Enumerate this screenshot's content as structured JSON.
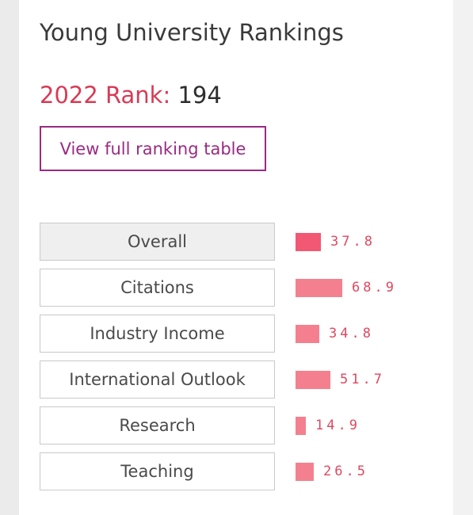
{
  "header": {
    "title": "Young University Rankings"
  },
  "rank": {
    "label": "2022 Rank:",
    "value": "194"
  },
  "actions": {
    "full_table_label": "View full ranking table"
  },
  "colors": {
    "rank_label": "#d93a55",
    "button_border": "#9b2a82",
    "bar": "#f4808f",
    "bar_active": "#f25873",
    "score_text": "#e04860"
  },
  "metrics": [
    {
      "name": "Overall",
      "score": "37.8",
      "value": 37.8,
      "active": true
    },
    {
      "name": "Citations",
      "score": "68.9",
      "value": 68.9,
      "active": false
    },
    {
      "name": "Industry Income",
      "score": "34.8",
      "value": 34.8,
      "active": false
    },
    {
      "name": "International Outlook",
      "score": "51.7",
      "value": 51.7,
      "active": false
    },
    {
      "name": "Research",
      "score": "14.9",
      "value": 14.9,
      "active": false
    },
    {
      "name": "Teaching",
      "score": "26.5",
      "value": 26.5,
      "active": false
    }
  ]
}
